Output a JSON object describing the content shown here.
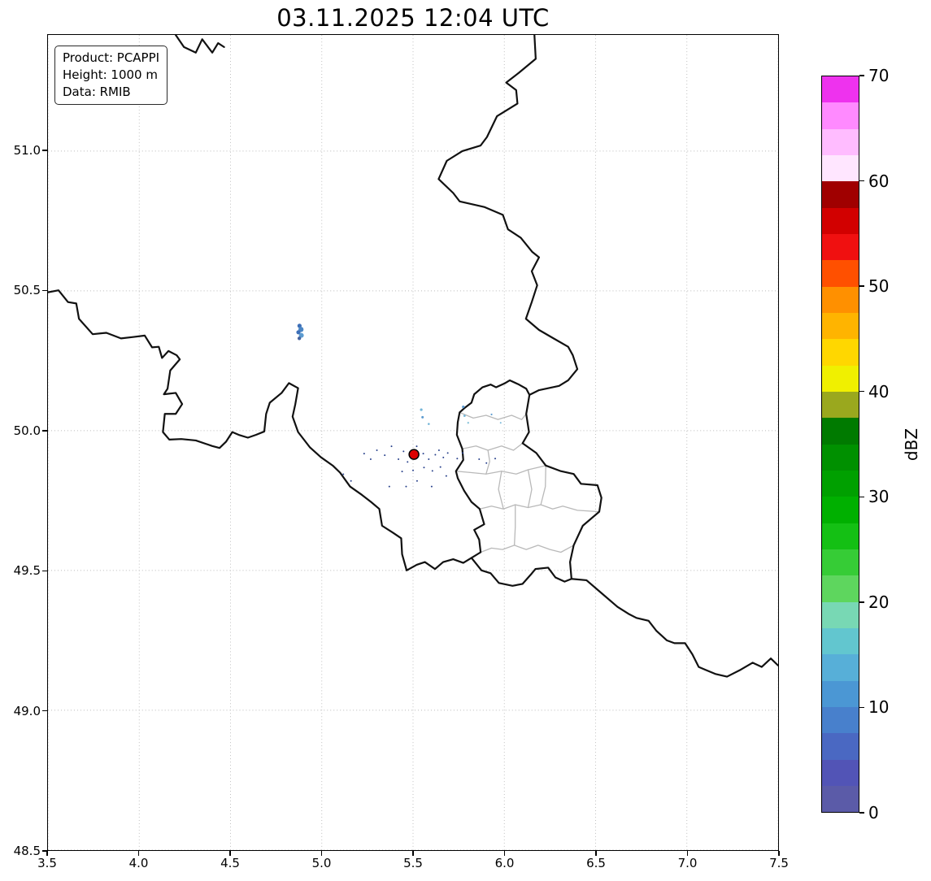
{
  "title": "03.11.2025 12:04 UTC",
  "info_box": {
    "lines": [
      "Product: PCAPPI",
      "Height: 1000 m",
      "Data: RMIB"
    ]
  },
  "colorbar": {
    "label": "dBZ",
    "vmin": 0,
    "vmax": 70,
    "ticks": [
      "0",
      "10",
      "20",
      "30",
      "40",
      "50",
      "60",
      "70"
    ],
    "colors_bottom_to_top": [
      "#5b5ba8",
      "#5254b6",
      "#4a68c2",
      "#4880cc",
      "#4b97d4",
      "#57afd8",
      "#62c6cf",
      "#78d8b4",
      "#5ed65e",
      "#36cc36",
      "#14c014",
      "#00b000",
      "#00a000",
      "#009000",
      "#007a00",
      "#9aa81e",
      "#f0f000",
      "#ffd700",
      "#ffb400",
      "#ff9000",
      "#ff5000",
      "#f01010",
      "#d20000",
      "#a00000",
      "#ffe6ff",
      "#ffbcff",
      "#ff8aff",
      "#ee32ee"
    ]
  },
  "map": {
    "x_axis": {
      "min": 3.5,
      "max": 7.5,
      "ticks": [
        "3.5",
        "4.0",
        "4.5",
        "5.0",
        "5.5",
        "6.0",
        "6.5",
        "7.0",
        "7.5"
      ]
    },
    "y_axis": {
      "min": 48.5,
      "max": 51.415,
      "ticks": [
        "48.5",
        "49.0",
        "49.5",
        "50.0",
        "50.5",
        "51.0"
      ]
    },
    "grid_color": "#b9b9b9",
    "border_color": "#111111",
    "canton_color": "#b9b9b9",
    "country_borders": [
      {
        "name": "be-nl-north",
        "points": [
          [
            4.2,
            51.415
          ],
          [
            4.245,
            51.372
          ],
          [
            4.31,
            51.352
          ],
          [
            4.345,
            51.4
          ],
          [
            4.4,
            51.352
          ],
          [
            4.432,
            51.386
          ],
          [
            4.465,
            51.372
          ]
        ]
      },
      {
        "name": "nl-de-be-lu-east-fr-de",
        "points": [
          [
            6.165,
            51.415
          ],
          [
            6.172,
            51.33
          ],
          [
            6.08,
            51.28
          ],
          [
            6.01,
            51.245
          ],
          [
            6.065,
            51.218
          ],
          [
            6.072,
            51.17
          ],
          [
            5.96,
            51.125
          ],
          [
            5.905,
            51.05
          ],
          [
            5.87,
            51.02
          ],
          [
            5.77,
            51.0
          ],
          [
            5.685,
            50.965
          ],
          [
            5.64,
            50.9
          ],
          [
            5.72,
            50.85
          ],
          [
            5.755,
            50.82
          ],
          [
            5.89,
            50.8
          ],
          [
            5.992,
            50.772
          ],
          [
            6.02,
            50.72
          ],
          [
            6.09,
            50.69
          ],
          [
            6.152,
            50.64
          ],
          [
            6.19,
            50.62
          ],
          [
            6.15,
            50.57
          ],
          [
            6.18,
            50.52
          ],
          [
            6.15,
            50.46
          ],
          [
            6.118,
            50.4
          ],
          [
            6.19,
            50.36
          ],
          [
            6.27,
            50.33
          ],
          [
            6.35,
            50.3
          ],
          [
            6.375,
            50.27
          ],
          [
            6.4,
            50.22
          ],
          [
            6.35,
            50.18
          ],
          [
            6.3,
            50.16
          ],
          [
            6.19,
            50.145
          ],
          [
            6.138,
            50.128
          ],
          [
            6.12,
            50.06
          ],
          [
            6.135,
            49.995
          ],
          [
            6.1,
            49.955
          ],
          [
            6.175,
            49.92
          ],
          [
            6.227,
            49.875
          ],
          [
            6.31,
            49.855
          ],
          [
            6.38,
            49.845
          ],
          [
            6.42,
            49.81
          ],
          [
            6.51,
            49.805
          ],
          [
            6.532,
            49.76
          ],
          [
            6.52,
            49.71
          ],
          [
            6.43,
            49.66
          ],
          [
            6.38,
            49.59
          ],
          [
            6.36,
            49.53
          ],
          [
            6.368,
            49.47
          ],
          [
            6.45,
            49.465
          ],
          [
            6.53,
            49.42
          ],
          [
            6.62,
            49.37
          ],
          [
            6.68,
            49.345
          ],
          [
            6.724,
            49.33
          ],
          [
            6.79,
            49.32
          ],
          [
            6.832,
            49.285
          ],
          [
            6.89,
            49.25
          ],
          [
            6.932,
            49.24
          ],
          [
            6.99,
            49.24
          ],
          [
            7.03,
            49.2
          ],
          [
            7.065,
            49.155
          ],
          [
            7.1,
            49.145
          ],
          [
            7.155,
            49.13
          ],
          [
            7.22,
            49.12
          ],
          [
            7.295,
            49.145
          ],
          [
            7.36,
            49.17
          ],
          [
            7.41,
            49.155
          ],
          [
            7.46,
            49.185
          ],
          [
            7.5,
            49.16
          ]
        ]
      },
      {
        "name": "fr-be-lu-south",
        "points": [
          [
            3.5,
            50.495
          ],
          [
            3.558,
            50.502
          ],
          [
            3.61,
            50.46
          ],
          [
            3.655,
            50.455
          ],
          [
            3.67,
            50.4
          ],
          [
            3.745,
            50.345
          ],
          [
            3.82,
            50.35
          ],
          [
            3.9,
            50.33
          ],
          [
            3.97,
            50.335
          ],
          [
            4.03,
            50.34
          ],
          [
            4.07,
            50.298
          ],
          [
            4.107,
            50.3
          ],
          [
            4.125,
            50.26
          ],
          [
            4.16,
            50.285
          ],
          [
            4.205,
            50.27
          ],
          [
            4.222,
            50.255
          ],
          [
            4.17,
            50.215
          ],
          [
            4.155,
            50.15
          ],
          [
            4.135,
            50.13
          ],
          [
            4.2,
            50.135
          ],
          [
            4.235,
            50.095
          ],
          [
            4.2,
            50.06
          ],
          [
            4.14,
            50.06
          ],
          [
            4.13,
            49.995
          ],
          [
            4.165,
            49.968
          ],
          [
            4.23,
            49.97
          ],
          [
            4.31,
            49.965
          ],
          [
            4.4,
            49.945
          ],
          [
            4.44,
            49.938
          ],
          [
            4.475,
            49.96
          ],
          [
            4.51,
            49.995
          ],
          [
            4.545,
            49.985
          ],
          [
            4.595,
            49.975
          ],
          [
            4.64,
            49.985
          ],
          [
            4.685,
            49.997
          ],
          [
            4.695,
            50.06
          ],
          [
            4.715,
            50.1
          ],
          [
            4.78,
            50.135
          ],
          [
            4.82,
            50.17
          ],
          [
            4.87,
            50.152
          ],
          [
            4.855,
            50.095
          ],
          [
            4.84,
            50.05
          ],
          [
            4.87,
            49.995
          ],
          [
            4.935,
            49.94
          ],
          [
            4.995,
            49.905
          ],
          [
            5.06,
            49.875
          ],
          [
            5.1,
            49.85
          ],
          [
            5.155,
            49.8
          ],
          [
            5.22,
            49.77
          ],
          [
            5.27,
            49.745
          ],
          [
            5.315,
            49.72
          ],
          [
            5.33,
            49.66
          ],
          [
            5.39,
            49.635
          ],
          [
            5.435,
            49.615
          ],
          [
            5.44,
            49.558
          ],
          [
            5.465,
            49.5
          ],
          [
            5.52,
            49.52
          ],
          [
            5.565,
            49.53
          ],
          [
            5.62,
            49.505
          ],
          [
            5.665,
            49.53
          ],
          [
            5.72,
            49.54
          ],
          [
            5.775,
            49.527
          ],
          [
            5.82,
            49.545
          ],
          [
            5.875,
            49.5
          ],
          [
            5.925,
            49.49
          ],
          [
            5.97,
            49.455
          ],
          [
            6.045,
            49.445
          ],
          [
            6.1,
            49.452
          ],
          [
            6.145,
            49.485
          ],
          [
            6.17,
            49.505
          ],
          [
            6.24,
            49.51
          ],
          [
            6.28,
            49.475
          ],
          [
            6.33,
            49.46
          ],
          [
            6.368,
            49.47
          ]
        ]
      },
      {
        "name": "be-lu-west",
        "points": [
          [
            5.82,
            49.545
          ],
          [
            5.87,
            49.565
          ],
          [
            5.862,
            49.61
          ],
          [
            5.835,
            49.645
          ],
          [
            5.89,
            49.665
          ],
          [
            5.865,
            49.72
          ],
          [
            5.82,
            49.745
          ],
          [
            5.78,
            49.785
          ],
          [
            5.745,
            49.83
          ],
          [
            5.735,
            49.855
          ],
          [
            5.775,
            49.895
          ],
          [
            5.77,
            49.935
          ],
          [
            5.74,
            49.985
          ],
          [
            5.745,
            50.03
          ],
          [
            5.755,
            50.065
          ],
          [
            5.78,
            50.08
          ],
          [
            5.82,
            50.1
          ],
          [
            5.835,
            50.13
          ],
          [
            5.88,
            50.155
          ],
          [
            5.925,
            50.165
          ],
          [
            5.955,
            50.155
          ],
          [
            6.005,
            50.17
          ],
          [
            6.03,
            50.18
          ],
          [
            6.08,
            50.165
          ],
          [
            6.12,
            50.15
          ],
          [
            6.138,
            50.128
          ]
        ]
      }
    ],
    "canton_borders": [
      [
        [
          5.755,
          50.065
        ],
        [
          5.83,
          50.045
        ],
        [
          5.9,
          50.055
        ],
        [
          5.965,
          50.04
        ],
        [
          6.04,
          50.055
        ],
        [
          6.095,
          50.04
        ],
        [
          6.12,
          50.06
        ]
      ],
      [
        [
          5.77,
          49.935
        ],
        [
          5.845,
          49.945
        ],
        [
          5.91,
          49.93
        ],
        [
          5.985,
          49.945
        ],
        [
          6.05,
          49.93
        ],
        [
          6.1,
          49.955
        ]
      ],
      [
        [
          5.735,
          49.855
        ],
        [
          5.82,
          49.85
        ],
        [
          5.9,
          49.845
        ],
        [
          5.985,
          49.855
        ],
        [
          6.065,
          49.845
        ],
        [
          6.13,
          49.86
        ],
        [
          6.227,
          49.875
        ]
      ],
      [
        [
          5.865,
          49.72
        ],
        [
          5.93,
          49.73
        ],
        [
          5.995,
          49.72
        ],
        [
          6.06,
          49.735
        ],
        [
          6.13,
          49.725
        ],
        [
          6.2,
          49.735
        ],
        [
          6.265,
          49.72
        ],
        [
          6.32,
          49.73
        ],
        [
          6.4,
          49.715
        ],
        [
          6.52,
          49.71
        ]
      ],
      [
        [
          5.87,
          49.565
        ],
        [
          5.93,
          49.58
        ],
        [
          5.99,
          49.575
        ],
        [
          6.055,
          49.59
        ],
        [
          6.12,
          49.575
        ],
        [
          6.185,
          49.59
        ],
        [
          6.25,
          49.575
        ],
        [
          6.31,
          49.565
        ],
        [
          6.38,
          49.59
        ]
      ],
      [
        [
          5.985,
          49.855
        ],
        [
          5.968,
          49.79
        ],
        [
          5.995,
          49.72
        ]
      ],
      [
        [
          6.13,
          49.725
        ],
        [
          6.15,
          49.79
        ],
        [
          6.13,
          49.86
        ]
      ],
      [
        [
          6.055,
          49.59
        ],
        [
          6.06,
          49.655
        ],
        [
          6.06,
          49.735
        ]
      ],
      [
        [
          6.2,
          49.735
        ],
        [
          6.225,
          49.8
        ],
        [
          6.227,
          49.875
        ]
      ],
      [
        [
          5.91,
          49.93
        ],
        [
          5.92,
          49.89
        ],
        [
          5.9,
          49.845
        ]
      ]
    ],
    "echoes": [
      {
        "lon": 4.878,
        "lat": 50.375,
        "r": 2.6,
        "color": "#3d6fb8"
      },
      {
        "lon": 4.886,
        "lat": 50.362,
        "r": 3.2,
        "color": "#4b86c4"
      },
      {
        "lon": 4.872,
        "lat": 50.352,
        "r": 2.6,
        "color": "#3d6fb8"
      },
      {
        "lon": 4.888,
        "lat": 50.341,
        "r": 3.0,
        "color": "#5c9bd0"
      },
      {
        "lon": 4.877,
        "lat": 50.33,
        "r": 2.2,
        "color": "#44639f"
      },
      {
        "lon": 5.545,
        "lat": 50.075,
        "r": 1.6,
        "color": "#74b6d8"
      },
      {
        "lon": 5.552,
        "lat": 50.048,
        "r": 1.5,
        "color": "#5c9bd0"
      },
      {
        "lon": 5.586,
        "lat": 50.024,
        "r": 1.3,
        "color": "#74b6d8"
      },
      {
        "lon": 5.775,
        "lat": 50.085,
        "r": 1.6,
        "color": "#5c9bd0"
      },
      {
        "lon": 5.782,
        "lat": 50.053,
        "r": 1.4,
        "color": "#74b6d8"
      },
      {
        "lon": 5.802,
        "lat": 50.028,
        "r": 1.2,
        "color": "#8cc6dc"
      },
      {
        "lon": 5.93,
        "lat": 50.058,
        "r": 1.1,
        "color": "#5c9bd0"
      },
      {
        "lon": 5.98,
        "lat": 50.028,
        "r": 1.0,
        "color": "#74b6d8"
      }
    ],
    "specks": {
      "color": "#27408b",
      "r": 1.0,
      "points": [
        [
          5.232,
          49.918
        ],
        [
          5.268,
          49.898
        ],
        [
          5.302,
          49.93
        ],
        [
          5.345,
          49.912
        ],
        [
          5.382,
          49.944
        ],
        [
          5.42,
          49.898
        ],
        [
          5.448,
          49.926
        ],
        [
          5.47,
          49.888
        ],
        [
          5.52,
          49.944
        ],
        [
          5.556,
          49.918
        ],
        [
          5.586,
          49.898
        ],
        [
          5.622,
          49.914
        ],
        [
          5.642,
          49.93
        ],
        [
          5.666,
          49.904
        ],
        [
          5.69,
          49.92
        ],
        [
          5.56,
          49.868
        ],
        [
          5.5,
          49.858
        ],
        [
          5.44,
          49.854
        ],
        [
          5.606,
          49.856
        ],
        [
          5.65,
          49.87
        ],
        [
          5.742,
          49.9
        ],
        [
          5.772,
          49.92
        ],
        [
          5.862,
          49.898
        ],
        [
          5.902,
          49.884
        ],
        [
          5.95,
          49.9
        ],
        [
          5.118,
          49.844
        ],
        [
          5.16,
          49.82
        ],
        [
          5.37,
          49.8
        ],
        [
          5.462,
          49.8
        ],
        [
          5.522,
          49.82
        ],
        [
          5.602,
          49.8
        ],
        [
          5.682,
          49.838
        ]
      ]
    },
    "radar_site": {
      "lon": 5.505,
      "lat": 49.915,
      "radius": 6,
      "color": "#dd0000",
      "edge_color": "#000000"
    }
  }
}
